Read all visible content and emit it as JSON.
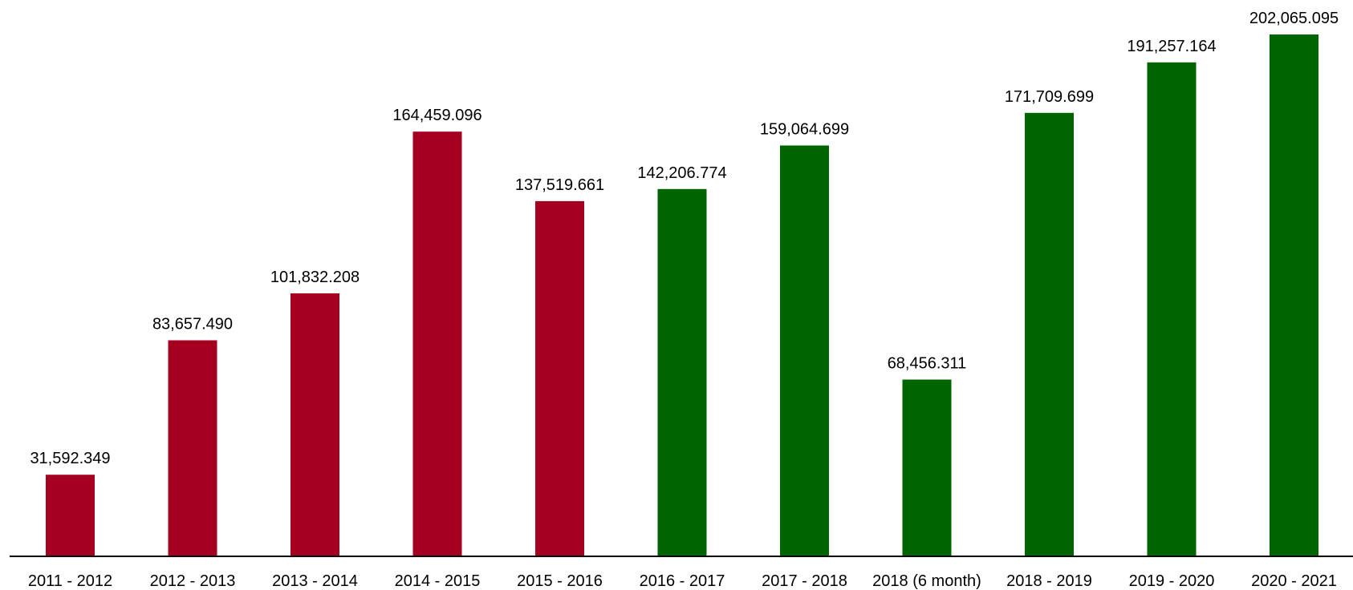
{
  "chart_data": {
    "type": "bar",
    "title": "",
    "xlabel": "",
    "ylabel": "",
    "categories": [
      "2011 - 2012",
      "2012 - 2013",
      "2013 - 2014",
      "2014 - 2015",
      "2015 - 2016",
      "2016 - 2017",
      "2017 - 2018",
      "2018 (6 month)",
      "2018 - 2019",
      "2019 - 2020",
      "2020 - 2021"
    ],
    "values": [
      31592.349,
      83657.49,
      101832.208,
      164459.096,
      137519.661,
      142206.774,
      159064.699,
      68456.311,
      171709.699,
      191257.164,
      202065.095
    ],
    "value_labels": [
      "31,592.349",
      "83,657.490",
      "101,832.208",
      "164,459.096",
      "137,519.661",
      "142,206.774",
      "159,064.699",
      "68,456.311",
      "171,709.699",
      "191,257.164",
      "202,065.095"
    ],
    "bar_colors": [
      "#a50021",
      "#a50021",
      "#a50021",
      "#a50021",
      "#a50021",
      "#006400",
      "#006400",
      "#006400",
      "#006400",
      "#006400",
      "#006400"
    ],
    "ylim": [
      0,
      202065.095
    ],
    "grid": false,
    "legend": "none",
    "axis_color": "#000000"
  }
}
